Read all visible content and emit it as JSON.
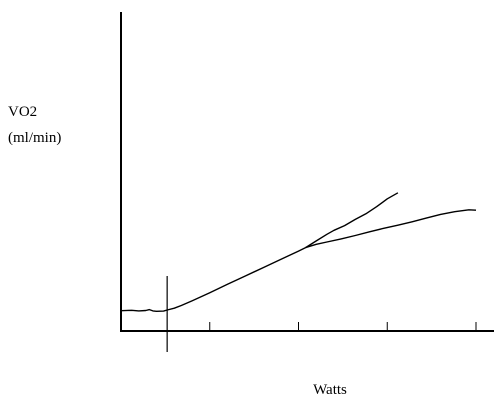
{
  "chart_data": {
    "type": "line",
    "title": "",
    "xlabel": "Watts",
    "ylabel_lines": [
      "VO2",
      "(ml/min)"
    ],
    "xlim": [
      0,
      100
    ],
    "ylim": [
      0,
      100
    ],
    "grid": false,
    "x_ticks": [
      25,
      50,
      75,
      100
    ],
    "marker_x": 13,
    "series": [
      {
        "values": [
          [
            0,
            10.5
          ],
          [
            3,
            10.7
          ],
          [
            5,
            10.4
          ],
          [
            7,
            10.6
          ],
          [
            8,
            11.1
          ],
          [
            9,
            10.4
          ],
          [
            10,
            10.2
          ],
          [
            12,
            10.3
          ],
          [
            13,
            10.9
          ],
          [
            15,
            11.8
          ],
          [
            17,
            13.2
          ],
          [
            20,
            15.6
          ],
          [
            25,
            19.8
          ],
          [
            30,
            24.2
          ],
          [
            35,
            28.5
          ],
          [
            40,
            32.8
          ],
          [
            45,
            37.1
          ],
          [
            50,
            41.4
          ],
          [
            52,
            43.2
          ],
          [
            55,
            46.7
          ],
          [
            58,
            50.1
          ],
          [
            60,
            52.2
          ],
          [
            63,
            54.6
          ],
          [
            66,
            57.8
          ],
          [
            69,
            60.7
          ],
          [
            72,
            64.4
          ],
          [
            75,
            68.5
          ],
          [
            78,
            71.6
          ]
        ]
      },
      {
        "values": [
          [
            52,
            43.2
          ],
          [
            55,
            44.9
          ],
          [
            58,
            46.1
          ],
          [
            62,
            47.7
          ],
          [
            66,
            49.5
          ],
          [
            70,
            51.4
          ],
          [
            74,
            53.2
          ],
          [
            78,
            54.8
          ],
          [
            82,
            56.6
          ],
          [
            86,
            58.5
          ],
          [
            90,
            60.4
          ],
          [
            94,
            61.8
          ],
          [
            98,
            62.8
          ],
          [
            100,
            62.6
          ]
        ]
      }
    ]
  },
  "colors": {
    "line": "#000000",
    "background": "#ffffff"
  }
}
